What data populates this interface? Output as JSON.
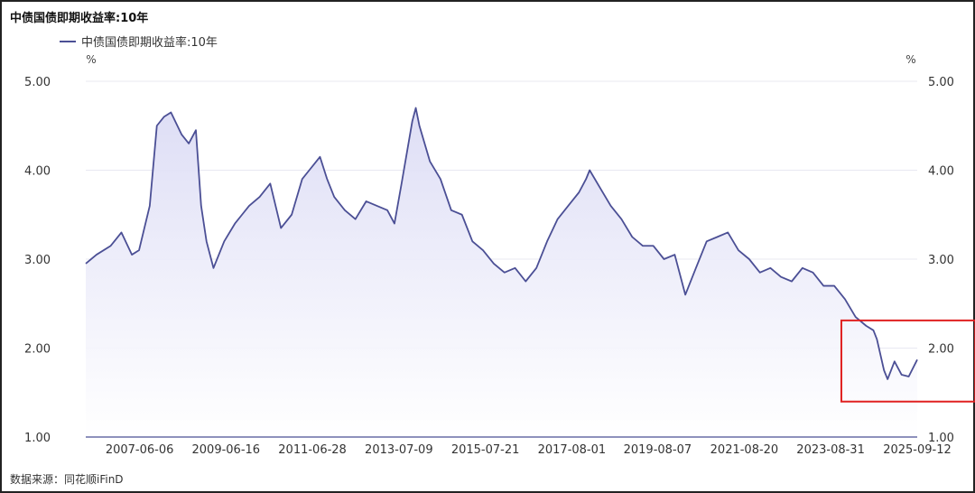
{
  "chart_data": {
    "type": "area",
    "title": "中债国债即期收益率:10年",
    "series": [
      {
        "name": "中债国债即期收益率:10年",
        "color": "#4b4f95",
        "x": [
          "2006-03-01",
          "2006-06-01",
          "2006-10-01",
          "2007-01-01",
          "2007-04-01",
          "2007-06-01",
          "2007-09-01",
          "2007-11-01",
          "2008-01-01",
          "2008-03-01",
          "2008-06-01",
          "2008-08-01",
          "2008-10-01",
          "2008-11-15",
          "2008-12-31",
          "2009-03-01",
          "2009-06-01",
          "2009-09-01",
          "2009-11-01",
          "2010-01-01",
          "2010-04-01",
          "2010-07-01",
          "2010-10-01",
          "2011-01-01",
          "2011-04-01",
          "2011-06-01",
          "2011-08-01",
          "2011-09-01",
          "2011-11-01",
          "2012-01-01",
          "2012-04-01",
          "2012-07-01",
          "2012-10-01",
          "2013-01-01",
          "2013-04-01",
          "2013-06-01",
          "2013-08-01",
          "2013-11-01",
          "2013-12-01",
          "2014-01-01",
          "2014-04-01",
          "2014-07-01",
          "2014-10-01",
          "2015-01-01",
          "2015-04-01",
          "2015-07-01",
          "2015-10-01",
          "2016-01-01",
          "2016-04-01",
          "2016-07-01",
          "2016-10-01",
          "2017-01-01",
          "2017-04-01",
          "2017-07-01",
          "2017-10-01",
          "2017-12-01",
          "2018-01-01",
          "2018-04-01",
          "2018-07-01",
          "2018-10-01",
          "2019-01-01",
          "2019-04-01",
          "2019-07-01",
          "2019-10-01",
          "2020-01-01",
          "2020-04-01",
          "2020-07-01",
          "2020-10-01",
          "2021-01-01",
          "2021-04-01",
          "2021-07-01",
          "2021-10-01",
          "2022-01-01",
          "2022-04-01",
          "2022-07-01",
          "2022-10-01",
          "2023-01-01",
          "2023-04-01",
          "2023-07-01",
          "2023-10-01",
          "2024-01-01",
          "2024-04-01",
          "2024-07-01",
          "2024-09-01",
          "2024-10-01",
          "2024-12-01",
          "2025-01-01",
          "2025-03-01",
          "2025-05-01",
          "2025-07-01",
          "2025-09-12"
        ],
        "values": [
          2.95,
          3.05,
          3.15,
          3.3,
          3.05,
          3.1,
          3.6,
          4.5,
          4.6,
          4.65,
          4.4,
          4.3,
          4.45,
          3.6,
          3.2,
          2.9,
          3.2,
          3.4,
          3.5,
          3.6,
          3.7,
          3.85,
          3.35,
          3.5,
          3.9,
          4.0,
          4.1,
          4.15,
          3.9,
          3.7,
          3.55,
          3.45,
          3.65,
          3.6,
          3.55,
          3.4,
          3.85,
          4.55,
          4.7,
          4.5,
          4.1,
          3.9,
          3.55,
          3.5,
          3.2,
          3.1,
          2.95,
          2.85,
          2.9,
          2.75,
          2.9,
          3.2,
          3.45,
          3.6,
          3.75,
          3.9,
          4.0,
          3.8,
          3.6,
          3.45,
          3.25,
          3.15,
          3.15,
          3.0,
          3.05,
          2.6,
          2.9,
          3.2,
          3.25,
          3.3,
          3.1,
          3.0,
          2.85,
          2.9,
          2.8,
          2.75,
          2.9,
          2.85,
          2.7,
          2.7,
          2.55,
          2.35,
          2.25,
          2.2,
          2.1,
          1.75,
          1.65,
          1.85,
          1.7,
          1.68,
          1.87
        ]
      }
    ],
    "x_tick_labels": [
      "2007-06-06",
      "2009-06-16",
      "2011-06-28",
      "2013-07-09",
      "2015-07-21",
      "2017-08-01",
      "2019-08-07",
      "2021-08-20",
      "2023-08-31",
      "2025-09-12"
    ],
    "y_tick_labels": [
      "5.00",
      "4.00",
      "3.00",
      "2.00",
      "1.00"
    ],
    "ylim": [
      1.0,
      5.0
    ],
    "y_unit_left": "%",
    "y_unit_right": "%",
    "legend_position": "top-left",
    "highlight_box": {
      "color": "#e02020",
      "x_range": [
        "2024-01-01",
        "2025-12-31"
      ],
      "y_range": [
        1.5,
        2.25
      ]
    }
  },
  "source_label": "数据来源：同花顺iFinD"
}
